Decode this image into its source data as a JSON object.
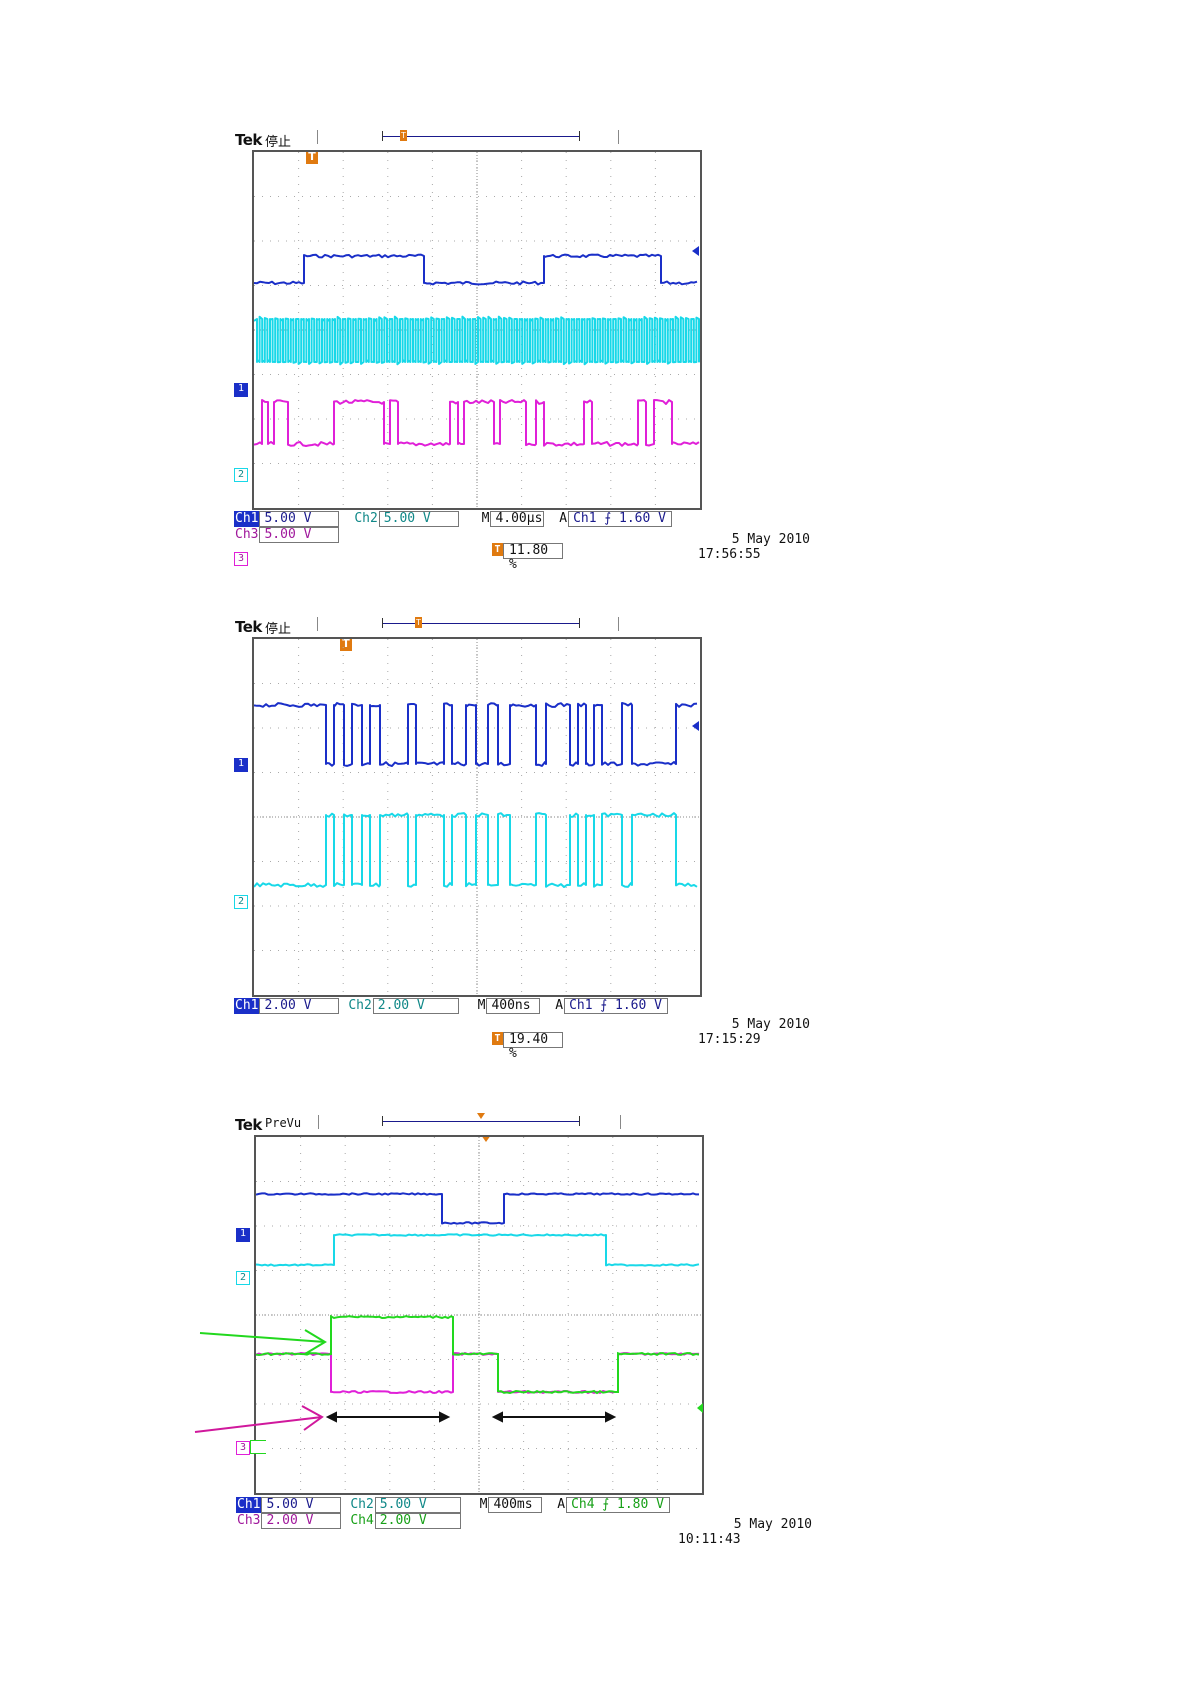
{
  "colors": {
    "ch1": "#1a2fc8",
    "ch2": "#18d8e8",
    "ch3": "#e020d8",
    "ch4": "#22d81e",
    "trigger": "#e07a10",
    "ch1_text": "#1a1a8c",
    "ch2_text": "#108888",
    "ch3_text": "#a0189c",
    "ch4_text": "#18a018"
  },
  "icons": {
    "trigger_marker": "T",
    "channel_marker_1": "1",
    "channel_marker_2": "2",
    "channel_marker_3": "3"
  },
  "screenshots": [
    {
      "brand": "Tek",
      "state": "停止",
      "readout_row1": [
        {
          "label": "Ch1",
          "value": "5.00 V"
        },
        {
          "label": "Ch2",
          "value": "5.00 V"
        },
        {
          "label": "M",
          "value": "4.00µs"
        },
        {
          "label": "A",
          "value": "Ch1 ⨍ 1.60 V"
        }
      ],
      "readout_row2": [
        {
          "label": "Ch3",
          "value": "5.00 V"
        }
      ],
      "trigger_position": "11.80 %",
      "date": "5 May 2010",
      "time": "17:56:55"
    },
    {
      "brand": "Tek",
      "state": "停止",
      "readout_row1": [
        {
          "label": "Ch1",
          "value": "2.00 V"
        },
        {
          "label": "Ch2",
          "value": "2.00 V"
        },
        {
          "label": "M",
          "value": "400ns"
        },
        {
          "label": "A",
          "value": "Ch1 ⨍ 1.60 V"
        }
      ],
      "trigger_position": "19.40 %",
      "date": "5 May 2010",
      "time": "17:15:29"
    },
    {
      "brand": "Tek",
      "state": "PreVu",
      "readout_row1": [
        {
          "label": "Ch1",
          "value": "5.00 V"
        },
        {
          "label": "Ch2",
          "value": "5.00 V"
        },
        {
          "label": "M",
          "value": "400ms"
        },
        {
          "label": "A",
          "value": "Ch4 ⨍ 1.80 V"
        }
      ],
      "readout_row2": [
        {
          "label": "Ch3",
          "value": "2.00 V"
        },
        {
          "label": "Ch4",
          "value": "2.00 V"
        }
      ],
      "date": "5 May 2010",
      "time": "10:11:43"
    }
  ]
}
